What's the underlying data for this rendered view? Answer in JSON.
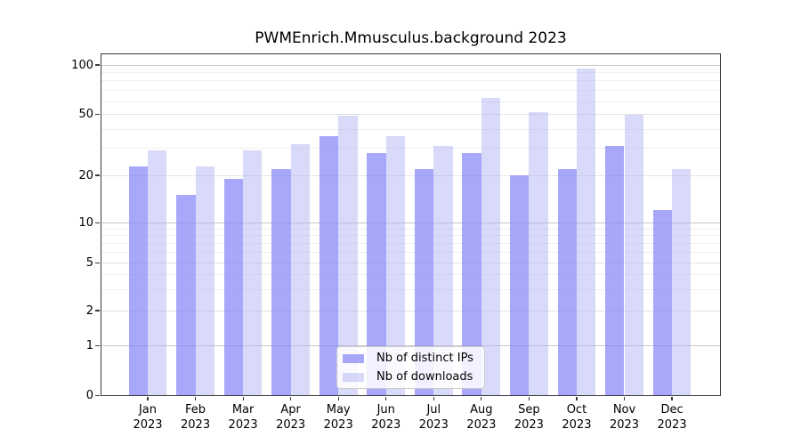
{
  "title": "PWMEnrich.Mmusculus.background 2023",
  "legend": {
    "items": [
      {
        "label": "Nb of distinct IPs",
        "color": "#a8a8fa"
      },
      {
        "label": "Nb of downloads",
        "color": "#d9d9f9"
      }
    ]
  },
  "y_axis": {
    "tick_labels": [
      "0",
      "1",
      "2",
      "5",
      "10",
      "20",
      "50",
      "100"
    ]
  },
  "x_axis": {
    "year": "2023",
    "months": [
      "Jan",
      "Feb",
      "Mar",
      "Apr",
      "May",
      "Jun",
      "Jul",
      "Aug",
      "Sep",
      "Oct",
      "Nov",
      "Dec"
    ]
  },
  "chart_data": {
    "type": "bar",
    "title": "PWMEnrich.Mmusculus.background 2023",
    "categories": [
      "Jan 2023",
      "Feb 2023",
      "Mar 2023",
      "Apr 2023",
      "May 2023",
      "Jun 2023",
      "Jul 2023",
      "Aug 2023",
      "Sep 2023",
      "Oct 2023",
      "Nov 2023",
      "Dec 2023"
    ],
    "series": [
      {
        "name": "Nb of distinct IPs",
        "color": "#a8a8fa",
        "values": [
          23,
          15,
          19,
          22,
          36,
          28,
          22,
          28,
          20,
          22,
          31,
          12
        ]
      },
      {
        "name": "Nb of downloads",
        "color": "#d9d9f9",
        "values": [
          29,
          23,
          29,
          32,
          49,
          36,
          31,
          63,
          52,
          95,
          50,
          22
        ]
      }
    ],
    "xlabel": "",
    "ylabel": "",
    "y_ticks": [
      0,
      1,
      2,
      5,
      10,
      20,
      50,
      100
    ],
    "y_minor_gridlines": [
      3,
      4,
      6,
      7,
      8,
      9,
      30,
      40,
      60,
      70,
      80,
      90
    ],
    "y_scale": "log-like",
    "ylim": [
      0,
      115
    ],
    "grid": true,
    "legend_position": "bottom-center-inside"
  }
}
